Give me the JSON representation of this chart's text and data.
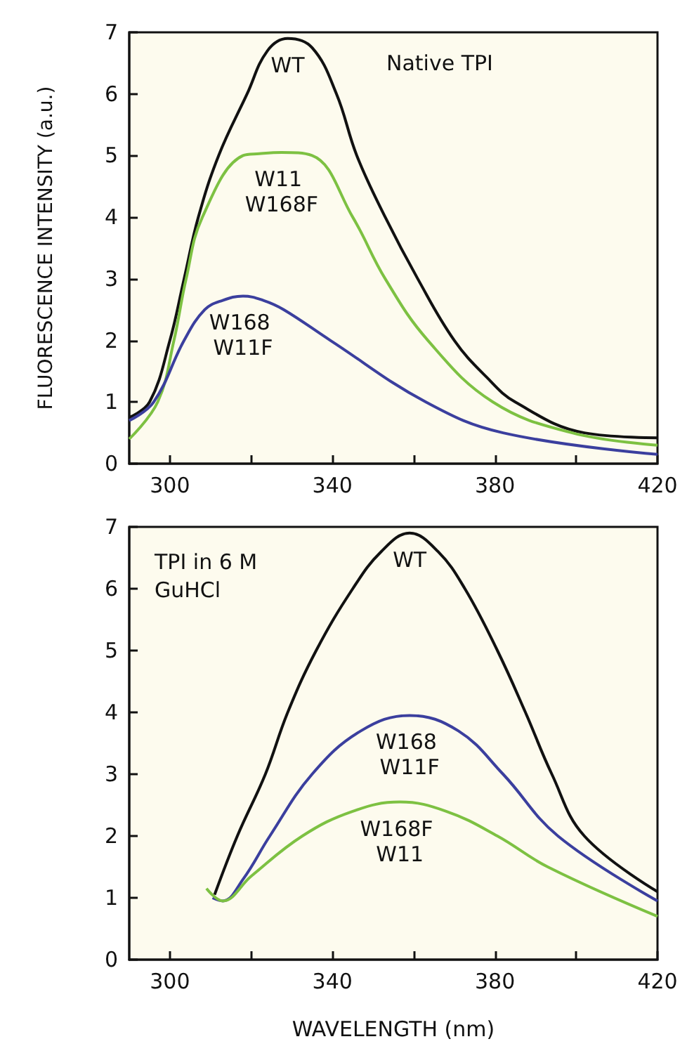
{
  "chart_data": [
    {
      "type": "line",
      "title": "Native TPI",
      "ylabel": "FLUORESCENCE INTENSITY (a.u.)",
      "xlim": [
        290,
        420
      ],
      "ylim": [
        0,
        7
      ],
      "xticks": [
        300,
        {
          "value": 320,
          "label": null
        },
        340,
        {
          "value": 360,
          "label": null
        },
        380,
        {
          "value": 400,
          "label": null
        },
        420
      ],
      "yticks": [
        0,
        1,
        2,
        3,
        4,
        5,
        6,
        7
      ],
      "grid": false,
      "marker": "none",
      "line_style": "solid",
      "series": [
        {
          "name": "WT",
          "color": "#111111",
          "x": [
            290,
            295,
            300,
            303.5,
            307,
            312,
            319,
            324,
            329,
            335,
            341,
            346,
            353,
            361,
            370,
            378,
            385,
            402,
            420
          ],
          "values": [
            0.75,
            1.0,
            2.0,
            3,
            4,
            5,
            6,
            6.7,
            6.9,
            6.75,
            6,
            5,
            4,
            3,
            2,
            1.4,
            1,
            0.5,
            0.42
          ]
        },
        {
          "name": "W11 W168F",
          "color": "#7dc142",
          "x": [
            290,
            297,
            301,
            304,
            308,
            318,
            322,
            327.5,
            335,
            345,
            353,
            363.5,
            379.5,
            399,
            420
          ],
          "values": [
            0.4,
            1,
            2,
            3,
            4,
            5,
            5.03,
            5.05,
            5,
            4,
            3,
            2,
            1,
            0.5,
            0.3
          ]
        },
        {
          "name": "W168 W11F",
          "color": "#3b3f9e",
          "x": [
            290,
            296,
            303.5,
            308.6,
            313,
            318,
            323,
            328,
            339.5,
            363,
            382,
            420
          ],
          "values": [
            0.7,
            1,
            2,
            2.5,
            2.65,
            2.72,
            2.65,
            2.5,
            2,
            1,
            0.5,
            0.15
          ]
        }
      ]
    },
    {
      "type": "line",
      "title": "TPI in 6 M GuHCl",
      "xlabel": "WAVELENGTH (nm)",
      "xlim": [
        290,
        420
      ],
      "ylim": [
        0,
        7
      ],
      "xticks": [
        300,
        {
          "value": 320,
          "label": null
        },
        340,
        {
          "value": 360,
          "label": null
        },
        380,
        {
          "value": 400,
          "label": null
        },
        420
      ],
      "yticks": [
        0,
        1,
        2,
        3,
        4,
        5,
        6,
        7
      ],
      "grid": false,
      "marker": "none",
      "line_style": "solid",
      "series": [
        {
          "name": "WT",
          "color": "#111111",
          "x": [
            311,
            316.6,
            323.5,
            329,
            336,
            345,
            352,
            359,
            366,
            372.6,
            380.6,
            387.5,
            394,
            402,
            420
          ],
          "values": [
            1.05,
            2,
            3,
            4,
            5,
            6,
            6.6,
            6.9,
            6.6,
            6,
            5,
            4,
            3,
            2,
            1.1
          ]
        },
        {
          "name": "W168 W11F",
          "color": "#3b3f9e",
          "x": [
            310.5,
            313,
            318,
            324.6,
            335,
            347,
            359,
            371,
            382,
            395.5,
            420
          ],
          "values": [
            1.0,
            0.95,
            1.3,
            2,
            3,
            3.7,
            3.95,
            3.7,
            3,
            2,
            0.95
          ]
        },
        {
          "name": "W168F W11",
          "color": "#7dc142",
          "x": [
            309,
            313,
            320,
            332.6,
            345,
            356.6,
            368,
            380.6,
            393,
            420
          ],
          "values": [
            1.15,
            0.95,
            1.35,
            2,
            2.4,
            2.55,
            2.4,
            2,
            1.5,
            0.7
          ]
        }
      ]
    }
  ]
}
